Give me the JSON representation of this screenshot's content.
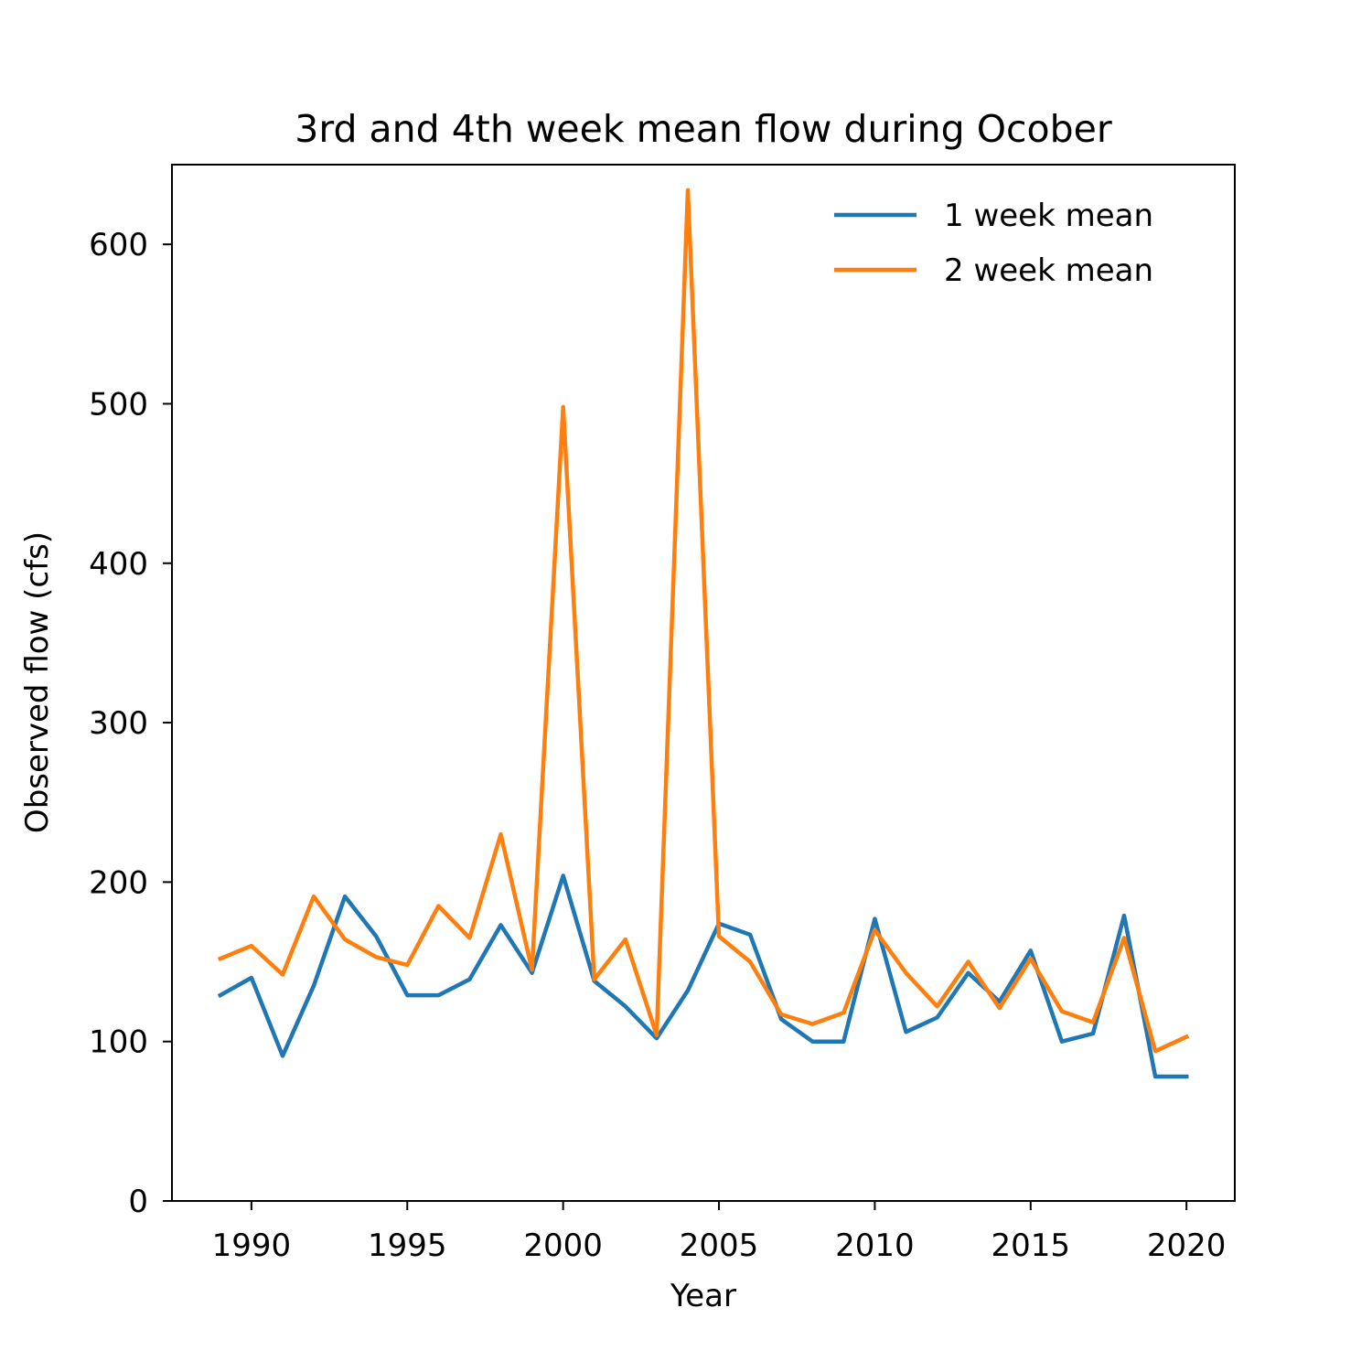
{
  "chart_data": {
    "type": "line",
    "title": "3rd and 4th week mean flow during Ocober",
    "xlabel": "Year",
    "ylabel": "Observed flow (cfs)",
    "xlim": [
      1987.45,
      2021.55
    ],
    "ylim": [
      0,
      650
    ],
    "xticks": [
      1990,
      1995,
      2000,
      2005,
      2010,
      2015,
      2020
    ],
    "yticks": [
      0,
      100,
      200,
      300,
      400,
      500,
      600
    ],
    "legend_position": "top-right",
    "grid": false,
    "x": [
      1989,
      1990,
      1991,
      1992,
      1993,
      1994,
      1995,
      1996,
      1997,
      1998,
      1999,
      2000,
      2001,
      2002,
      2003,
      2004,
      2005,
      2006,
      2007,
      2008,
      2009,
      2010,
      2011,
      2012,
      2013,
      2014,
      2015,
      2016,
      2017,
      2018,
      2019,
      2020
    ],
    "series": [
      {
        "name": "1 week mean",
        "color": "#1f77b4",
        "values": [
          129,
          140,
          91,
          135,
          191,
          166,
          129,
          129,
          139,
          173,
          143,
          204,
          138,
          122,
          102,
          132,
          174,
          167,
          114,
          100,
          100,
          177,
          106,
          115,
          143,
          125,
          157,
          100,
          105,
          179,
          78,
          78
        ]
      },
      {
        "name": "2 week mean",
        "color": "#ff7f0e",
        "values": [
          152,
          160,
          142,
          191,
          164,
          153,
          148,
          185,
          165,
          230,
          145,
          498,
          139,
          164,
          104,
          634,
          166,
          150,
          117,
          111,
          118,
          170,
          143,
          122,
          150,
          121,
          152,
          119,
          112,
          165,
          94,
          103
        ]
      }
    ]
  }
}
